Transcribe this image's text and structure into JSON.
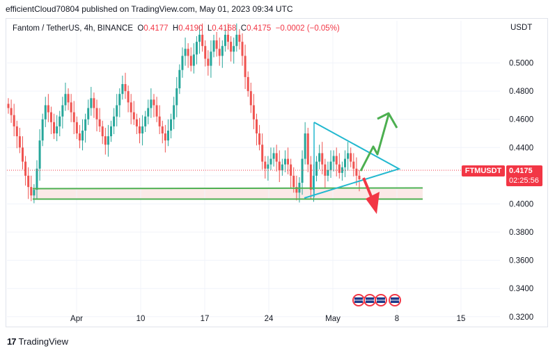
{
  "header": {
    "publisher_line": "efficientCloud70804 published on TradingView.com, May 01, 2023 09:34 UTC"
  },
  "legend": {
    "symbol_line": "Fantom / TetherUS, 4h, BINANCE",
    "open_label": "O",
    "open": "0.4177",
    "high_label": "H",
    "high": "0.4190",
    "low_label": "L",
    "low": "0.4168",
    "close_label": "C",
    "close": "0.4175",
    "change": "−0.0002 (−0.05%)"
  },
  "axis": {
    "unit": "USDT"
  },
  "price_tag": {
    "symbol": "FTMUSDT",
    "price": "0.4175",
    "countdown": "02:25:56"
  },
  "footer": {
    "logo_mark": "17",
    "brand": "TradingView"
  },
  "colors": {
    "up": "#26a69a",
    "down": "#ef5350",
    "triangle": "#22b8cf",
    "support": "#4caf50",
    "arrow_up": "#4caf50",
    "arrow_down": "#f23645",
    "zone_fill": "#fbe9e7"
  },
  "icons": [
    "us-flag-icon",
    "us-flag-icon",
    "us-flag-icon",
    "us-flag-icon"
  ],
  "chart_data": {
    "type": "candlestick",
    "x_ticks": [
      "Apr",
      "10",
      "17",
      "24",
      "May",
      "8",
      "15"
    ],
    "y_ticks": [
      "0.3200",
      "0.3400",
      "0.3600",
      "0.3800",
      "0.4000",
      "0.4200",
      "0.4400",
      "0.4600",
      "0.4800",
      "0.5000"
    ],
    "ylim": [
      0.312,
      0.52
    ],
    "last_price": 0.4175,
    "support_zone": [
      0.3965,
      0.4045
    ],
    "series": [
      {
        "values": [
          0.468,
          0.463,
          0.455,
          0.448,
          0.44,
          0.43,
          0.42,
          0.412,
          0.406,
          0.41,
          0.425,
          0.445,
          0.46,
          0.47,
          0.465,
          0.458,
          0.45,
          0.455,
          0.462,
          0.47,
          0.478,
          0.472,
          0.465,
          0.458,
          0.45,
          0.445,
          0.452,
          0.46,
          0.468,
          0.475,
          0.468,
          0.46,
          0.455,
          0.448,
          0.442,
          0.448,
          0.455,
          0.462,
          0.47,
          0.478,
          0.485,
          0.48,
          0.472,
          0.465,
          0.46,
          0.455,
          0.45,
          0.455,
          0.462,
          0.468,
          0.474,
          0.47,
          0.462,
          0.455,
          0.45,
          0.445,
          0.452,
          0.46,
          0.47,
          0.482,
          0.495,
          0.505,
          0.51,
          0.505,
          0.498,
          0.506,
          0.515,
          0.52,
          0.512,
          0.503,
          0.498,
          0.508,
          0.516,
          0.51,
          0.505,
          0.512,
          0.52,
          0.515,
          0.508,
          0.512,
          0.52,
          0.515,
          0.505,
          0.49,
          0.48,
          0.47,
          0.46,
          0.45,
          0.442,
          0.43,
          0.425,
          0.428,
          0.432,
          0.436,
          0.43,
          0.424,
          0.428,
          0.432,
          0.428,
          0.42,
          0.412,
          0.408,
          0.415,
          0.432,
          0.45,
          0.428,
          0.41,
          0.42,
          0.43,
          0.436,
          0.428,
          0.42,
          0.424,
          0.43,
          0.434,
          0.428,
          0.422,
          0.426,
          0.432,
          0.436,
          0.43,
          0.425,
          0.42,
          0.4175
        ]
      }
    ]
  }
}
